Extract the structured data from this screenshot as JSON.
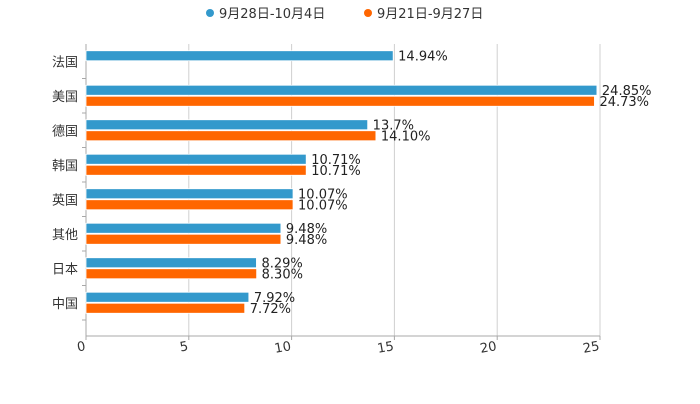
{
  "chart_data": {
    "type": "bar",
    "orientation": "horizontal",
    "categories": [
      "法国",
      "美国",
      "德国",
      "韩国",
      "英国",
      "其他",
      "日本",
      "中国"
    ],
    "series": [
      {
        "name": "9月28日-10月4日",
        "color": "#3399cc",
        "values": [
          14.94,
          24.85,
          13.7,
          10.71,
          10.07,
          9.48,
          8.29,
          7.92
        ],
        "labels": [
          "14.94%",
          "24.85%",
          "13.7%",
          "10.71%",
          "10.07%",
          "9.48%",
          "8.29%",
          "7.92%"
        ]
      },
      {
        "name": "9月21日-9月27日",
        "color": "#ff6600",
        "values": [
          null,
          24.73,
          14.1,
          10.71,
          10.07,
          9.48,
          8.3,
          7.72
        ],
        "labels": [
          "",
          "24.73%",
          "14.10%",
          "10.71%",
          "10.07%",
          "9.48%",
          "8.30%",
          "7.72%"
        ]
      }
    ],
    "xlim": [
      0,
      25
    ],
    "ticks": [
      0,
      5,
      10,
      15,
      20,
      25
    ],
    "tick_labels": [
      "0",
      "5",
      "10",
      "15",
      "20",
      "25"
    ],
    "grid": true,
    "legend_position": "top-center",
    "title": "",
    "xlabel": "",
    "ylabel": ""
  }
}
